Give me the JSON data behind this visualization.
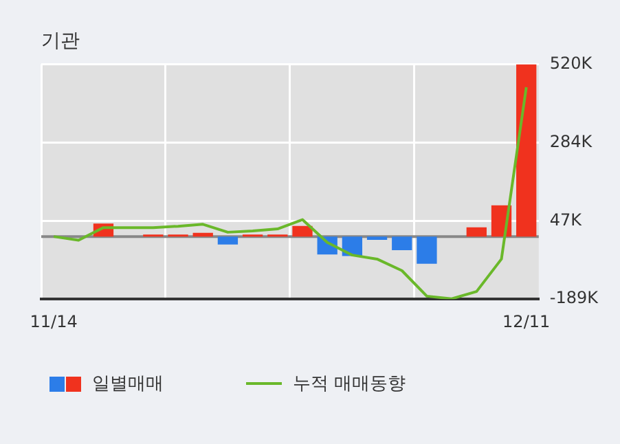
{
  "chart_data": {
    "type": "bar",
    "title": "기관",
    "categories": [
      "11/14",
      null,
      null,
      null,
      null,
      null,
      null,
      null,
      null,
      null,
      null,
      null,
      null,
      null,
      null,
      null,
      null,
      null,
      null,
      "12/11"
    ],
    "series": [
      {
        "name": "일별매매",
        "values": [
          0,
          0,
          39000,
          0,
          6000,
          6000,
          11000,
          -24000,
          6000,
          6000,
          32000,
          -54000,
          -59000,
          -10000,
          -41000,
          -82000,
          0,
          28000,
          94000,
          520000
        ],
        "colors": [
          "#f0321e",
          "#f0321e",
          "#f0321e",
          "#f0321e",
          "#f0321e",
          "#f0321e",
          "#f0321e",
          "#2c7de8",
          "#f0321e",
          "#f0321e",
          "#f0321e",
          "#2c7de8",
          "#2c7de8",
          "#2c7de8",
          "#2c7de8",
          "#2c7de8",
          "#f0321e",
          "#f0321e",
          "#f0321e",
          "#f0321e"
        ]
      },
      {
        "name": "누적 매매동향",
        "type": "line",
        "color": "#6ab82a",
        "values": [
          0,
          -11000,
          27000,
          27000,
          27000,
          31000,
          37000,
          13000,
          17000,
          23000,
          51000,
          -18000,
          -56000,
          -68000,
          -103000,
          -180000,
          -188000,
          -166000,
          -68000,
          451000
        ]
      }
    ],
    "ylim": [
      -189000,
      520000
    ],
    "yticks": [
      {
        "value": 520000,
        "label": "520K"
      },
      {
        "value": 284000,
        "label": "284K"
      },
      {
        "value": 47000,
        "label": "47K"
      },
      {
        "value": -189000,
        "label": "-189K"
      }
    ],
    "ref_lines": [
      {
        "axis": "y",
        "value": 0,
        "color": "#888888"
      }
    ],
    "grid": true,
    "legend": "bottom",
    "marker": "none"
  }
}
